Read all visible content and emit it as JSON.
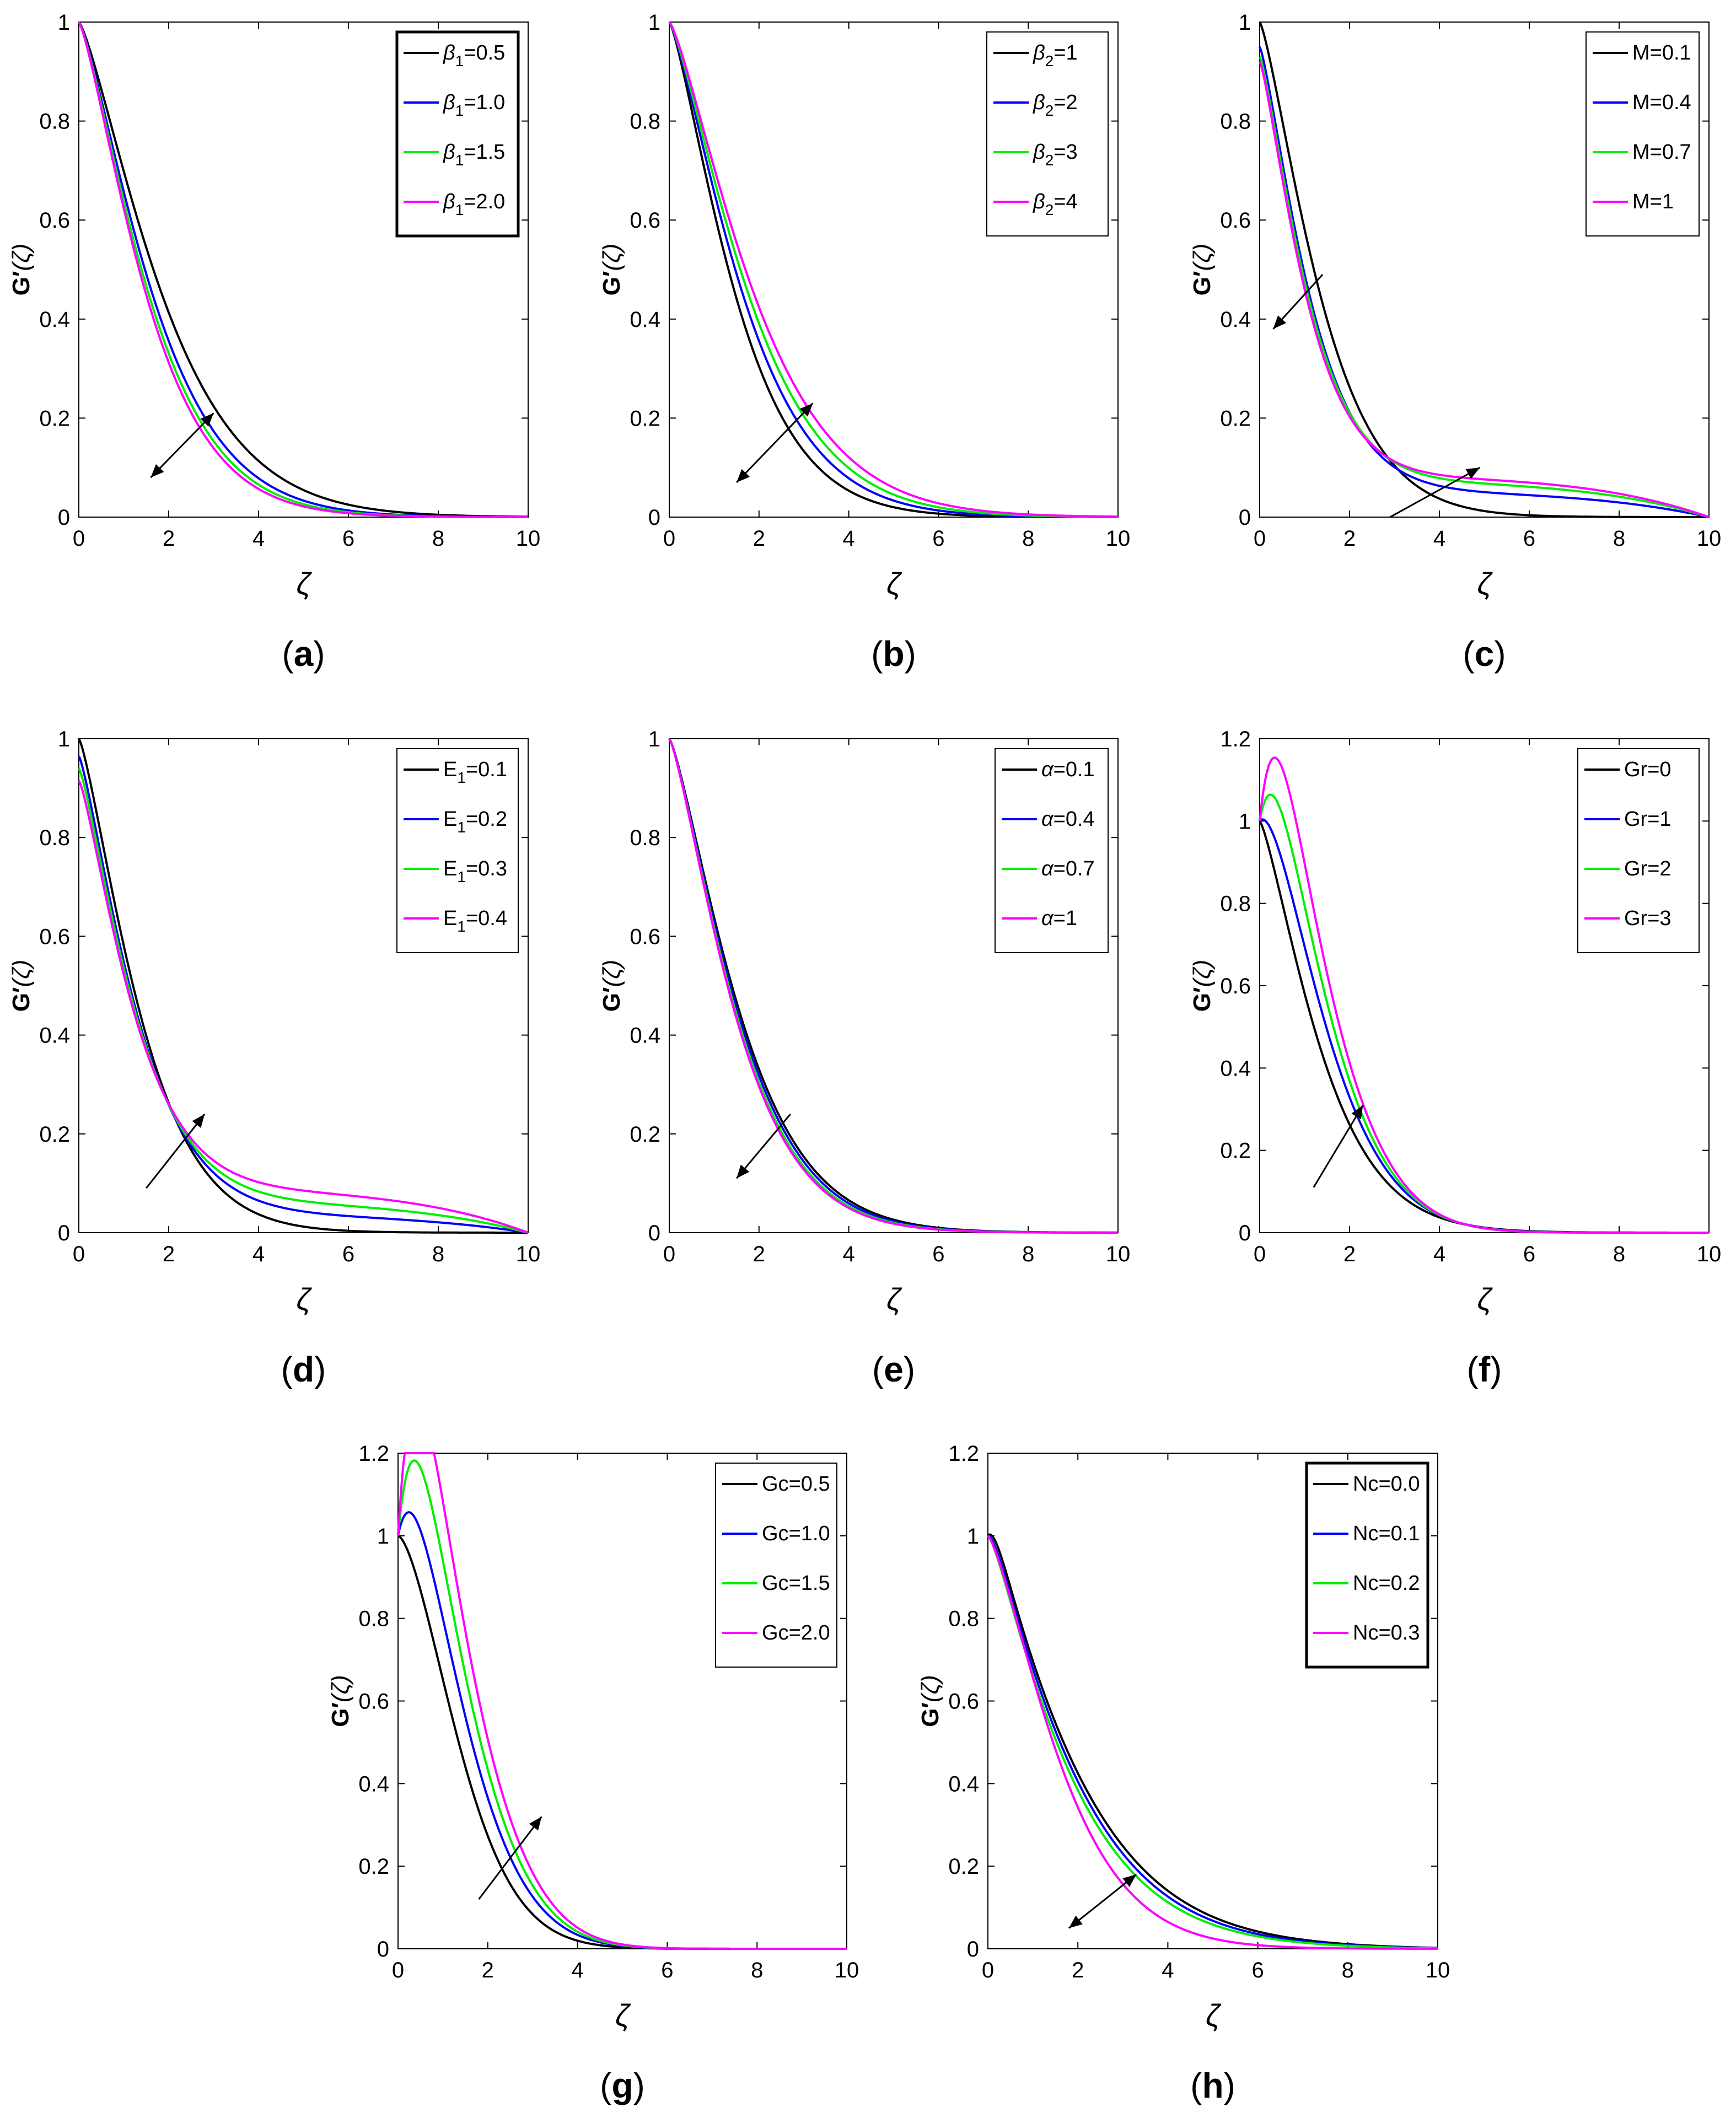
{
  "chart_data": [
    {
      "id": "a",
      "type": "line",
      "caption": "a",
      "xlabel": "ζ",
      "ylabel_main": "G′",
      "ylabel_paren": "(ζ)",
      "xlim": [
        0,
        10
      ],
      "ylim": [
        0,
        1
      ],
      "xticks": [
        "0",
        "2",
        "4",
        "6",
        "8",
        "10"
      ],
      "yticks": [
        "0",
        "0.2",
        "0.4",
        "0.6",
        "0.8",
        "1"
      ],
      "legend": {
        "position": "top-right",
        "symbol": "β",
        "sub": "1",
        "box": "thick"
      },
      "arrow": {
        "from": [
          3.0,
          0.21
        ],
        "to": [
          1.6,
          0.08
        ],
        "two_headed": true
      },
      "series": [
        {
          "label": "=0.5",
          "color": "#000000",
          "shape": "exp",
          "params": [
            0,
            1.0,
            2.2,
            1.3
          ]
        },
        {
          "label": "=1.0",
          "color": "#0000ff",
          "shape": "exp",
          "params": [
            0,
            1.0,
            1.95,
            1.3
          ]
        },
        {
          "label": "=1.5",
          "color": "#00ee00",
          "shape": "exp",
          "params": [
            0,
            1.0,
            1.85,
            1.3
          ]
        },
        {
          "label": "=2.0",
          "color": "#ff00ff",
          "shape": "exp",
          "params": [
            0,
            1.0,
            1.78,
            1.3
          ]
        }
      ]
    },
    {
      "id": "b",
      "type": "line",
      "caption": "b",
      "xlabel": "ζ",
      "ylabel_main": "G′",
      "ylabel_paren": "(ζ)",
      "xlim": [
        0,
        10
      ],
      "ylim": [
        0,
        1
      ],
      "xticks": [
        "0",
        "2",
        "4",
        "6",
        "8",
        "10"
      ],
      "yticks": [
        "0",
        "0.2",
        "0.4",
        "0.6",
        "0.8",
        "1"
      ],
      "legend": {
        "position": "top-right",
        "symbol": "β",
        "sub": "2",
        "box": "thin"
      },
      "arrow": {
        "from": [
          1.5,
          0.07
        ],
        "to": [
          3.2,
          0.23
        ],
        "two_headed": true
      },
      "series": [
        {
          "label": "=1",
          "color": "#000000",
          "shape": "exp",
          "params": [
            0,
            1.0,
            1.75,
            1.3
          ]
        },
        {
          "label": "=2",
          "color": "#0000ff",
          "shape": "exp",
          "params": [
            0,
            1.0,
            1.95,
            1.3
          ]
        },
        {
          "label": "=3",
          "color": "#00ee00",
          "shape": "exp",
          "params": [
            0,
            1.0,
            2.1,
            1.3
          ]
        },
        {
          "label": "=4",
          "color": "#ff00ff",
          "shape": "exp",
          "params": [
            0,
            1.0,
            2.25,
            1.3
          ]
        }
      ]
    },
    {
      "id": "c",
      "type": "line",
      "caption": "c",
      "xlabel": "ζ",
      "ylabel_main": "G′",
      "ylabel_paren": "(ζ)",
      "xlim": [
        0,
        10
      ],
      "ylim": [
        0,
        1
      ],
      "xticks": [
        "0",
        "2",
        "4",
        "6",
        "8",
        "10"
      ],
      "yticks": [
        "0",
        "0.2",
        "0.4",
        "0.6",
        "0.8",
        "1"
      ],
      "legend": {
        "position": "top-right",
        "symbol": "M",
        "sub": "",
        "box": "thin"
      },
      "arrow": {
        "from": [
          1.4,
          0.49
        ],
        "to": [
          0.3,
          0.38
        ],
        "two_headed": false
      },
      "arrow2": {
        "from": [
          2.9,
          0.0
        ],
        "to": [
          4.9,
          0.1
        ],
        "two_headed": false
      },
      "series": [
        {
          "label": "=0.1",
          "color": "#000000",
          "shape": "exp",
          "params": [
            0,
            1.0,
            1.6,
            1.3
          ]
        },
        {
          "label": "=0.4",
          "color": "#0000ff",
          "shape": "tail",
          "params": [
            0.05,
            1.0,
            1.3,
            1.25
          ]
        },
        {
          "label": "=0.7",
          "color": "#00ee00",
          "shape": "tail",
          "params": [
            0.07,
            1.0,
            1.25,
            1.25
          ]
        },
        {
          "label": "=1",
          "color": "#ff00ff",
          "shape": "tail",
          "params": [
            0.08,
            1.0,
            1.2,
            1.25
          ]
        }
      ]
    },
    {
      "id": "d",
      "type": "line",
      "caption": "d",
      "xlabel": "ζ",
      "ylabel_main": "G′",
      "ylabel_paren": "(ζ)",
      "xlim": [
        0,
        10
      ],
      "ylim": [
        0,
        1
      ],
      "xticks": [
        "0",
        "2",
        "4",
        "6",
        "8",
        "10"
      ],
      "yticks": [
        "0",
        "0.2",
        "0.4",
        "0.6",
        "0.8",
        "1"
      ],
      "legend": {
        "position": "top-right",
        "symbol": "E",
        "sub": "1",
        "box": "thin"
      },
      "arrow": {
        "from": [
          1.5,
          0.09
        ],
        "to": [
          2.8,
          0.24
        ],
        "two_headed": false
      },
      "series": [
        {
          "label": "=0.1",
          "color": "#000000",
          "shape": "exp",
          "params": [
            0,
            1.0,
            1.6,
            1.3
          ]
        },
        {
          "label": "=0.2",
          "color": "#0000ff",
          "shape": "tail",
          "params": [
            0.035,
            1.0,
            1.5,
            1.25
          ]
        },
        {
          "label": "=0.3",
          "color": "#00ee00",
          "shape": "tail",
          "params": [
            0.06,
            1.0,
            1.45,
            1.25
          ]
        },
        {
          "label": "=0.4",
          "color": "#ff00ff",
          "shape": "tail",
          "params": [
            0.085,
            1.0,
            1.4,
            1.25
          ]
        }
      ]
    },
    {
      "id": "e",
      "type": "line",
      "caption": "e",
      "xlabel": "ζ",
      "ylabel_main": "G′",
      "ylabel_paren": "(ζ)",
      "xlim": [
        0,
        10
      ],
      "ylim": [
        0,
        1
      ],
      "xticks": [
        "0",
        "2",
        "4",
        "6",
        "8",
        "10"
      ],
      "yticks": [
        "0",
        "0.2",
        "0.4",
        "0.6",
        "0.8",
        "1"
      ],
      "legend": {
        "position": "top-right",
        "symbol": "α",
        "sub": "",
        "box": "thin"
      },
      "arrow": {
        "from": [
          2.7,
          0.24
        ],
        "to": [
          1.5,
          0.11
        ],
        "two_headed": false
      },
      "series": [
        {
          "label": "=0.1",
          "color": "#000000",
          "shape": "exp",
          "params": [
            0,
            1.0,
            1.85,
            1.3
          ]
        },
        {
          "label": "=0.4",
          "color": "#0000ff",
          "shape": "exp",
          "params": [
            0,
            1.0,
            1.8,
            1.3
          ]
        },
        {
          "label": "=0.7",
          "color": "#00ee00",
          "shape": "exp",
          "params": [
            0,
            1.0,
            1.75,
            1.3
          ]
        },
        {
          "label": "=1",
          "color": "#ff00ff",
          "shape": "exp",
          "params": [
            0,
            1.0,
            1.72,
            1.3
          ]
        }
      ]
    },
    {
      "id": "f",
      "type": "line",
      "caption": "f",
      "xlabel": "ζ",
      "ylabel_main": "G′",
      "ylabel_paren": "(ζ)",
      "xlim": [
        0,
        10
      ],
      "ylim": [
        0,
        1.2
      ],
      "xticks": [
        "0",
        "2",
        "4",
        "6",
        "8",
        "10"
      ],
      "yticks": [
        "0",
        "0.2",
        "0.4",
        "0.6",
        "0.8",
        "1",
        "1.2"
      ],
      "legend": {
        "position": "top-right",
        "symbol": "Gr",
        "sub": "",
        "box": "thin"
      },
      "arrow": {
        "from": [
          1.2,
          0.11
        ],
        "to": [
          2.3,
          0.31
        ],
        "two_headed": false
      },
      "series": [
        {
          "label": "=0",
          "color": "#000000",
          "shape": "exp",
          "params": [
            0,
            1.0,
            1.6,
            1.3
          ]
        },
        {
          "label": "=1",
          "color": "#0000ff",
          "shape": "hump",
          "params": [
            0.04,
            1.0,
            1.85,
            1.5
          ]
        },
        {
          "label": "=2",
          "color": "#00ee00",
          "shape": "hump",
          "params": [
            0.14,
            1.0,
            1.95,
            1.6
          ]
        },
        {
          "label": "=3",
          "color": "#ff00ff",
          "shape": "hump",
          "params": [
            0.24,
            1.0,
            2.05,
            1.7
          ]
        }
      ]
    },
    {
      "id": "g",
      "type": "line",
      "caption": "g",
      "xlabel": "ζ",
      "ylabel_main": "G′",
      "ylabel_paren": "(ζ)",
      "xlim": [
        0,
        10
      ],
      "ylim": [
        0,
        1.2
      ],
      "xticks": [
        "0",
        "2",
        "4",
        "6",
        "8",
        "10"
      ],
      "yticks": [
        "0",
        "0.2",
        "0.4",
        "0.6",
        "0.8",
        "1",
        "1.2"
      ],
      "legend": {
        "position": "top-right",
        "symbol": "Gc",
        "sub": "",
        "box": "thin"
      },
      "arrow": {
        "from": [
          1.8,
          0.12
        ],
        "to": [
          3.2,
          0.32
        ],
        "two_headed": false
      },
      "series": [
        {
          "label": "=0.5",
          "color": "#000000",
          "shape": "hump",
          "params": [
            0.0,
            1.0,
            1.7,
            1.6
          ]
        },
        {
          "label": "=1.0",
          "color": "#0000ff",
          "shape": "hump",
          "params": [
            0.12,
            1.0,
            1.95,
            1.7
          ]
        },
        {
          "label": "=1.5",
          "color": "#00ee00",
          "shape": "hump",
          "params": [
            0.26,
            1.0,
            2.1,
            1.8
          ]
        },
        {
          "label": "=2.0",
          "color": "#ff00ff",
          "shape": "hump",
          "params": [
            0.4,
            1.0,
            2.25,
            1.9
          ]
        }
      ]
    },
    {
      "id": "h",
      "type": "line",
      "caption": "h",
      "xlabel": "ζ",
      "ylabel_main": "G′",
      "ylabel_paren": "(ζ)",
      "xlim": [
        0,
        10
      ],
      "ylim": [
        0,
        1.2
      ],
      "xticks": [
        "0",
        "2",
        "4",
        "6",
        "8",
        "10"
      ],
      "yticks": [
        "0",
        "0.2",
        "0.4",
        "0.6",
        "0.8",
        "1",
        "1.2"
      ],
      "legend": {
        "position": "top-right",
        "symbol": "Nc",
        "sub": "",
        "box": "thick"
      },
      "arrow": {
        "from": [
          3.3,
          0.18
        ],
        "to": [
          1.8,
          0.05
        ],
        "two_headed": true
      },
      "series": [
        {
          "label": "=0.0",
          "color": "#000000",
          "shape": "humptail",
          "params": [
            0.035,
            1.0,
            2.2,
            1.2
          ]
        },
        {
          "label": "=0.1",
          "color": "#0000ff",
          "shape": "humptail",
          "params": [
            0.02,
            1.0,
            2.1,
            1.2
          ]
        },
        {
          "label": "=0.2",
          "color": "#00ee00",
          "shape": "humptail",
          "params": [
            0.01,
            1.0,
            2.0,
            1.2
          ]
        },
        {
          "label": "=0.3",
          "color": "#ff00ff",
          "shape": "exp",
          "params": [
            0,
            1.0,
            1.9,
            1.35
          ]
        }
      ]
    }
  ]
}
